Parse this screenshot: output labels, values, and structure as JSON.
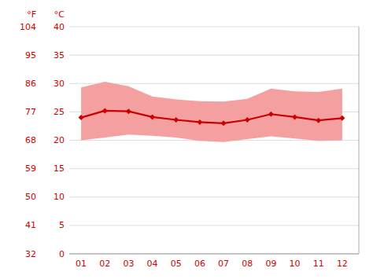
{
  "chart_data": {
    "type": "line",
    "x": [
      1,
      2,
      3,
      4,
      5,
      6,
      7,
      8,
      9,
      10,
      11,
      12
    ],
    "xlim": [
      0.5,
      12.7
    ],
    "xticks": [
      {
        "value": 1,
        "label": "01"
      },
      {
        "value": 2,
        "label": "02"
      },
      {
        "value": 3,
        "label": "03"
      },
      {
        "value": 4,
        "label": "04"
      },
      {
        "value": 5,
        "label": "05"
      },
      {
        "value": 6,
        "label": "06"
      },
      {
        "value": 7,
        "label": "07"
      },
      {
        "value": 8,
        "label": "08"
      },
      {
        "value": 9,
        "label": "09"
      },
      {
        "value": 10,
        "label": "10"
      },
      {
        "value": 11,
        "label": "11"
      },
      {
        "value": 12,
        "label": "12"
      }
    ],
    "series": [
      {
        "type": "range",
        "color": "#f5a0a0",
        "values": [
          29.3,
          30.3,
          29.5,
          27.7,
          27.2,
          26.9,
          26.8,
          27.3,
          29.1,
          28.6,
          28.5,
          29.1
        ],
        "low": [
          20.0,
          20.5,
          21.0,
          20.8,
          20.5,
          19.9,
          19.7,
          20.2,
          20.7,
          20.3,
          19.9,
          20.0
        ]
      },
      {
        "type": "line",
        "color": "#cc0000",
        "marker": "diamond",
        "values": [
          24.0,
          25.2,
          25.1,
          24.1,
          23.6,
          23.2,
          23.0,
          23.6,
          24.6,
          24.1,
          23.5,
          23.9
        ]
      }
    ],
    "color": "#cc0000",
    "y_label": "°C",
    "y2_label": "°F",
    "ylim": [
      0,
      40
    ],
    "yticks": [
      0,
      5,
      10,
      15,
      20,
      25,
      30,
      35,
      40
    ],
    "y2lim": [
      32,
      104
    ],
    "y2ticks": [
      32,
      41,
      50,
      59,
      68,
      77,
      86,
      95,
      104
    ],
    "grid": true
  }
}
